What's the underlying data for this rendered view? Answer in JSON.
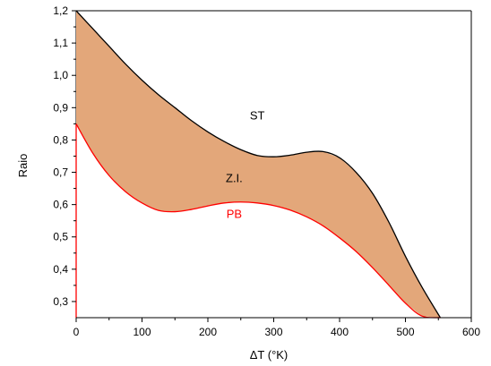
{
  "chart_data": {
    "type": "area",
    "xlabel": "ΔT (°K)",
    "ylabel": "Raio",
    "xlim": [
      0,
      600
    ],
    "ylim": [
      0.25,
      1.2
    ],
    "x_ticks": [
      0,
      100,
      200,
      300,
      400,
      500,
      600
    ],
    "x_tick_labels": [
      "0",
      "100",
      "200",
      "300",
      "400",
      "500",
      "600"
    ],
    "y_ticks": [
      0.3,
      0.4,
      0.5,
      0.6,
      0.7,
      0.8,
      0.9,
      1.0,
      1.1,
      1.2
    ],
    "y_tick_labels": [
      "0,3",
      "0,4",
      "0,5",
      "0,6",
      "0,7",
      "0,8",
      "0,9",
      "1,0",
      "1,1",
      "1,2"
    ],
    "grid": false,
    "fill_color": "#e3a77a",
    "series": [
      {
        "name": "ST",
        "color": "#000000",
        "x": [
          0,
          25,
          50,
          75,
          100,
          125,
          150,
          175,
          200,
          225,
          250,
          275,
          300,
          325,
          350,
          375,
          400,
          425,
          450,
          475,
          500,
          525,
          553
        ],
        "values": [
          1.2,
          1.145,
          1.09,
          1.035,
          0.985,
          0.94,
          0.9,
          0.86,
          0.825,
          0.795,
          0.77,
          0.752,
          0.748,
          0.753,
          0.762,
          0.764,
          0.745,
          0.7,
          0.635,
          0.545,
          0.44,
          0.345,
          0.25
        ]
      },
      {
        "name": "PB",
        "color": "#ff0000",
        "x": [
          0,
          25,
          50,
          75,
          100,
          125,
          150,
          175,
          200,
          225,
          250,
          275,
          300,
          325,
          350,
          375,
          400,
          425,
          450,
          475,
          500,
          525,
          553
        ],
        "values": [
          0.85,
          0.76,
          0.69,
          0.64,
          0.605,
          0.582,
          0.578,
          0.585,
          0.596,
          0.605,
          0.608,
          0.605,
          0.597,
          0.583,
          0.562,
          0.534,
          0.497,
          0.455,
          0.405,
          0.35,
          0.295,
          0.255,
          0.25
        ]
      }
    ],
    "annotations": [
      {
        "text": "ST",
        "x": 275,
        "y": 0.875
      },
      {
        "text": "Z.I.",
        "x": 240,
        "y": 0.68
      },
      {
        "text": "PB",
        "x": 240,
        "y": 0.57,
        "color": "#ff0000"
      }
    ]
  }
}
